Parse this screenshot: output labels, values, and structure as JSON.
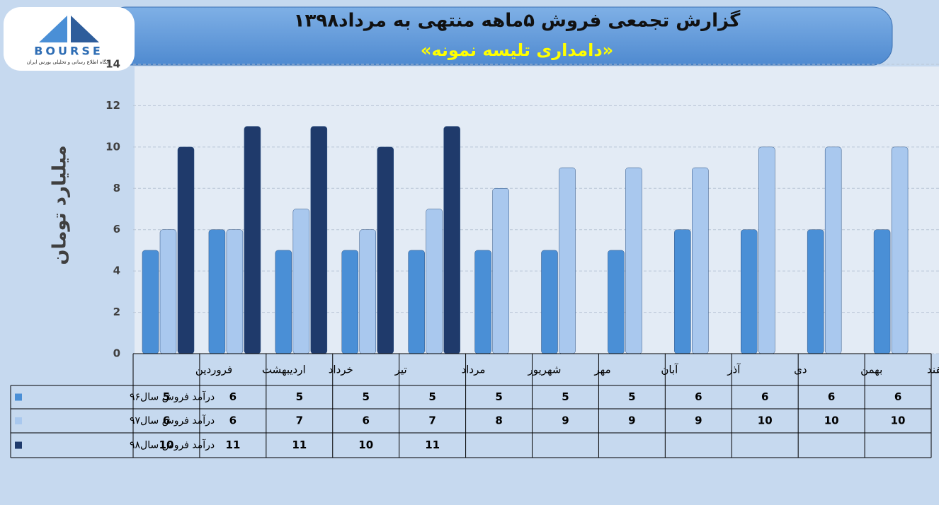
{
  "logo": {
    "text": "BOURSE",
    "tagline": "پایگاه اطلاع رسانی و تحلیلی بورس ایران"
  },
  "chart_data": {
    "type": "bar",
    "title": "گزارش تجمعی فروش ۵ماهه منتهی به مرداد۱۳۹۸",
    "subtitle": "«دامداری تلیسه نمونه»",
    "y_label": "میلیارد تومان",
    "categories": [
      "فروردین",
      "اردیبهشت",
      "خرداد",
      "تیر",
      "مرداد",
      "شهریور",
      "مهر",
      "آبان",
      "آذر",
      "دی",
      "بهمن",
      "اسفند"
    ],
    "series": [
      {
        "name": "درآمد فروش سال۹۶",
        "color": "#4a8fd6",
        "values": [
          5,
          6,
          5,
          5,
          5,
          5,
          5,
          5,
          6,
          6,
          6,
          6
        ]
      },
      {
        "name": "درآمد فروش سال۹۷",
        "color": "#a9c8ee",
        "values": [
          6,
          6,
          7,
          6,
          7,
          8,
          9,
          9,
          9,
          10,
          10,
          10
        ]
      },
      {
        "name": "درآمد فروش سال۹۸",
        "color": "#1f3a6b",
        "values": [
          10,
          11,
          11,
          10,
          11,
          null,
          null,
          null,
          null,
          null,
          null,
          null
        ]
      }
    ],
    "ylim": [
      0,
      14
    ],
    "yticks": [
      0,
      2,
      4,
      6,
      8,
      10,
      12,
      14
    ],
    "grid": true
  }
}
